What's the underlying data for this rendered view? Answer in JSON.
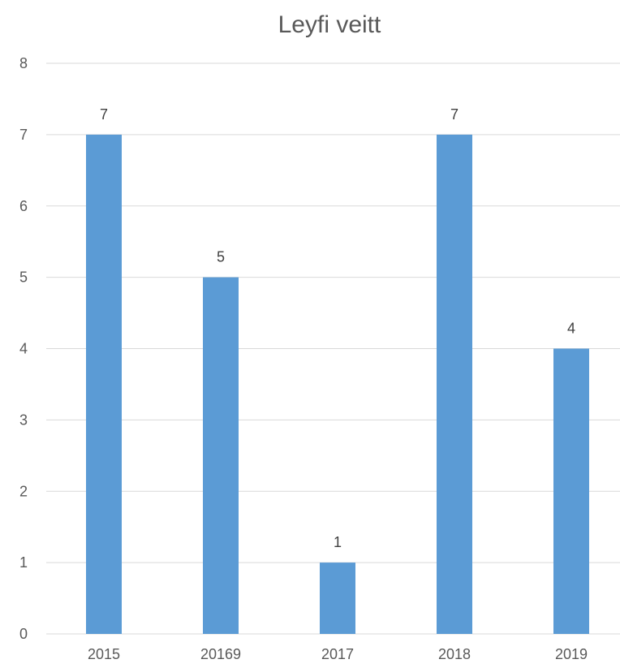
{
  "chart_data": {
    "type": "bar",
    "title": "Leyfi veitt",
    "categories": [
      "2015",
      "20169",
      "2017",
      "2018",
      "2019"
    ],
    "values": [
      7,
      5,
      1,
      7,
      4
    ],
    "data_labels": [
      "7",
      "5",
      "1",
      "7",
      "4"
    ],
    "ylim": [
      0,
      8
    ],
    "y_ticks": [
      "0",
      "1",
      "2",
      "3",
      "4",
      "5",
      "6",
      "7",
      "8"
    ],
    "grid": true,
    "legend": "none",
    "xlabel": "",
    "ylabel": "",
    "bar_color": "#5b9bd5"
  }
}
